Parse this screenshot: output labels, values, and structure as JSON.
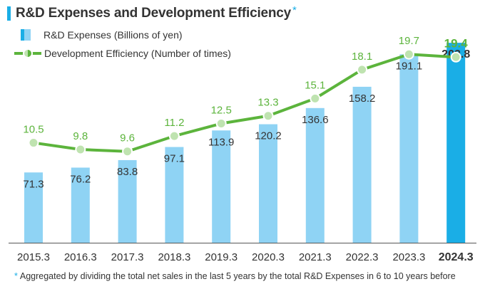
{
  "title": "R&D Expenses and Development Efficiency",
  "title_mark": "*",
  "legend": {
    "bar_label": "R&D Expenses (Billions of yen)",
    "line_label": "Development Efficiency (Number of times)"
  },
  "footnote": {
    "mark": "*",
    "text": "Aggregated by dividing the total net sales in the last 5 years by the total R&D Expenses in 6 to 10 years before"
  },
  "colors": {
    "bar": "#8fd3f4",
    "bar_highlight": "#1aaee6",
    "line": "#5cb43c",
    "line_label": "#5cb43c",
    "point_fill": "#bfe3b0"
  },
  "chart_data": {
    "type": "bar",
    "categories": [
      "2015.3",
      "2016.3",
      "2017.3",
      "2018.3",
      "2019.3",
      "2020.3",
      "2021.3",
      "2022.3",
      "2023.3",
      "2024.3"
    ],
    "highlight_category": "2024.3",
    "series": [
      {
        "name": "R&D Expenses (Billions of yen)",
        "type": "bar",
        "values": [
          71.3,
          76.2,
          83.8,
          97.1,
          113.9,
          120.2,
          136.6,
          158.2,
          191.1,
          202.8
        ]
      },
      {
        "name": "Development Efficiency (Number of times)",
        "type": "line",
        "values": [
          10.5,
          9.8,
          9.6,
          11.2,
          12.5,
          13.3,
          15.1,
          18.1,
          19.7,
          19.4
        ]
      }
    ],
    "bar_ylim": [
      0,
      213
    ],
    "line_ylim": [
      4.4,
      20.9
    ],
    "grid": false
  }
}
